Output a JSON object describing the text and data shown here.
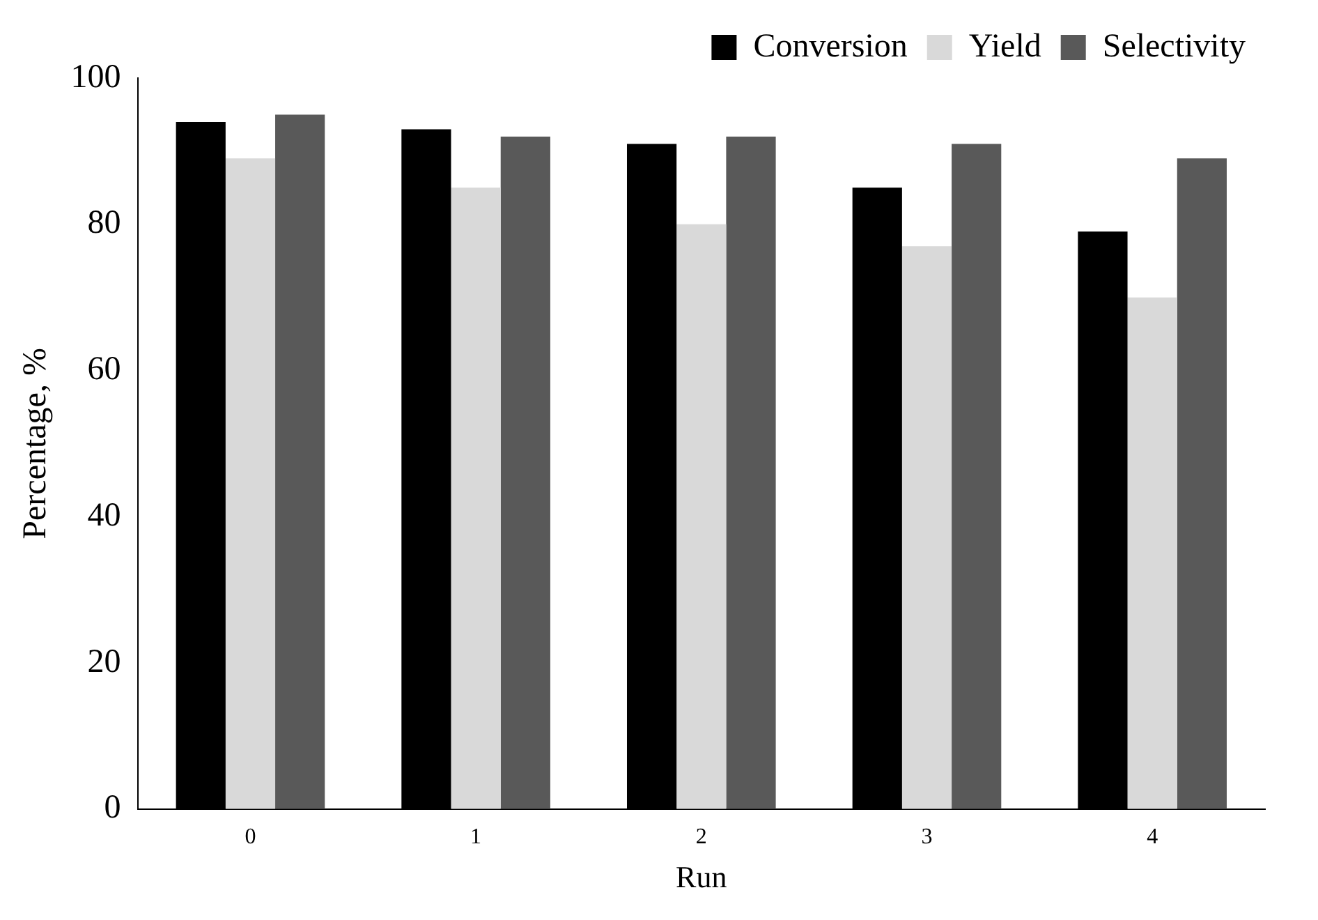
{
  "chart_data": {
    "type": "bar",
    "xlabel": "Run",
    "ylabel": "Percentage, %",
    "categories": [
      "0",
      "1",
      "2",
      "3",
      "4"
    ],
    "series": [
      {
        "name": "Conversion",
        "color": "#000000",
        "values": [
          94,
          93,
          91,
          85,
          79
        ]
      },
      {
        "name": "Yield",
        "color": "#d9d9d9",
        "values": [
          89,
          85,
          80,
          77,
          70
        ]
      },
      {
        "name": "Selectivity",
        "color": "#595959",
        "values": [
          95,
          92,
          92,
          91,
          89
        ]
      }
    ],
    "ylim": [
      0,
      100
    ],
    "yticks": [
      0,
      20,
      40,
      60,
      80,
      100
    ],
    "grid": false,
    "legend": "top right"
  }
}
